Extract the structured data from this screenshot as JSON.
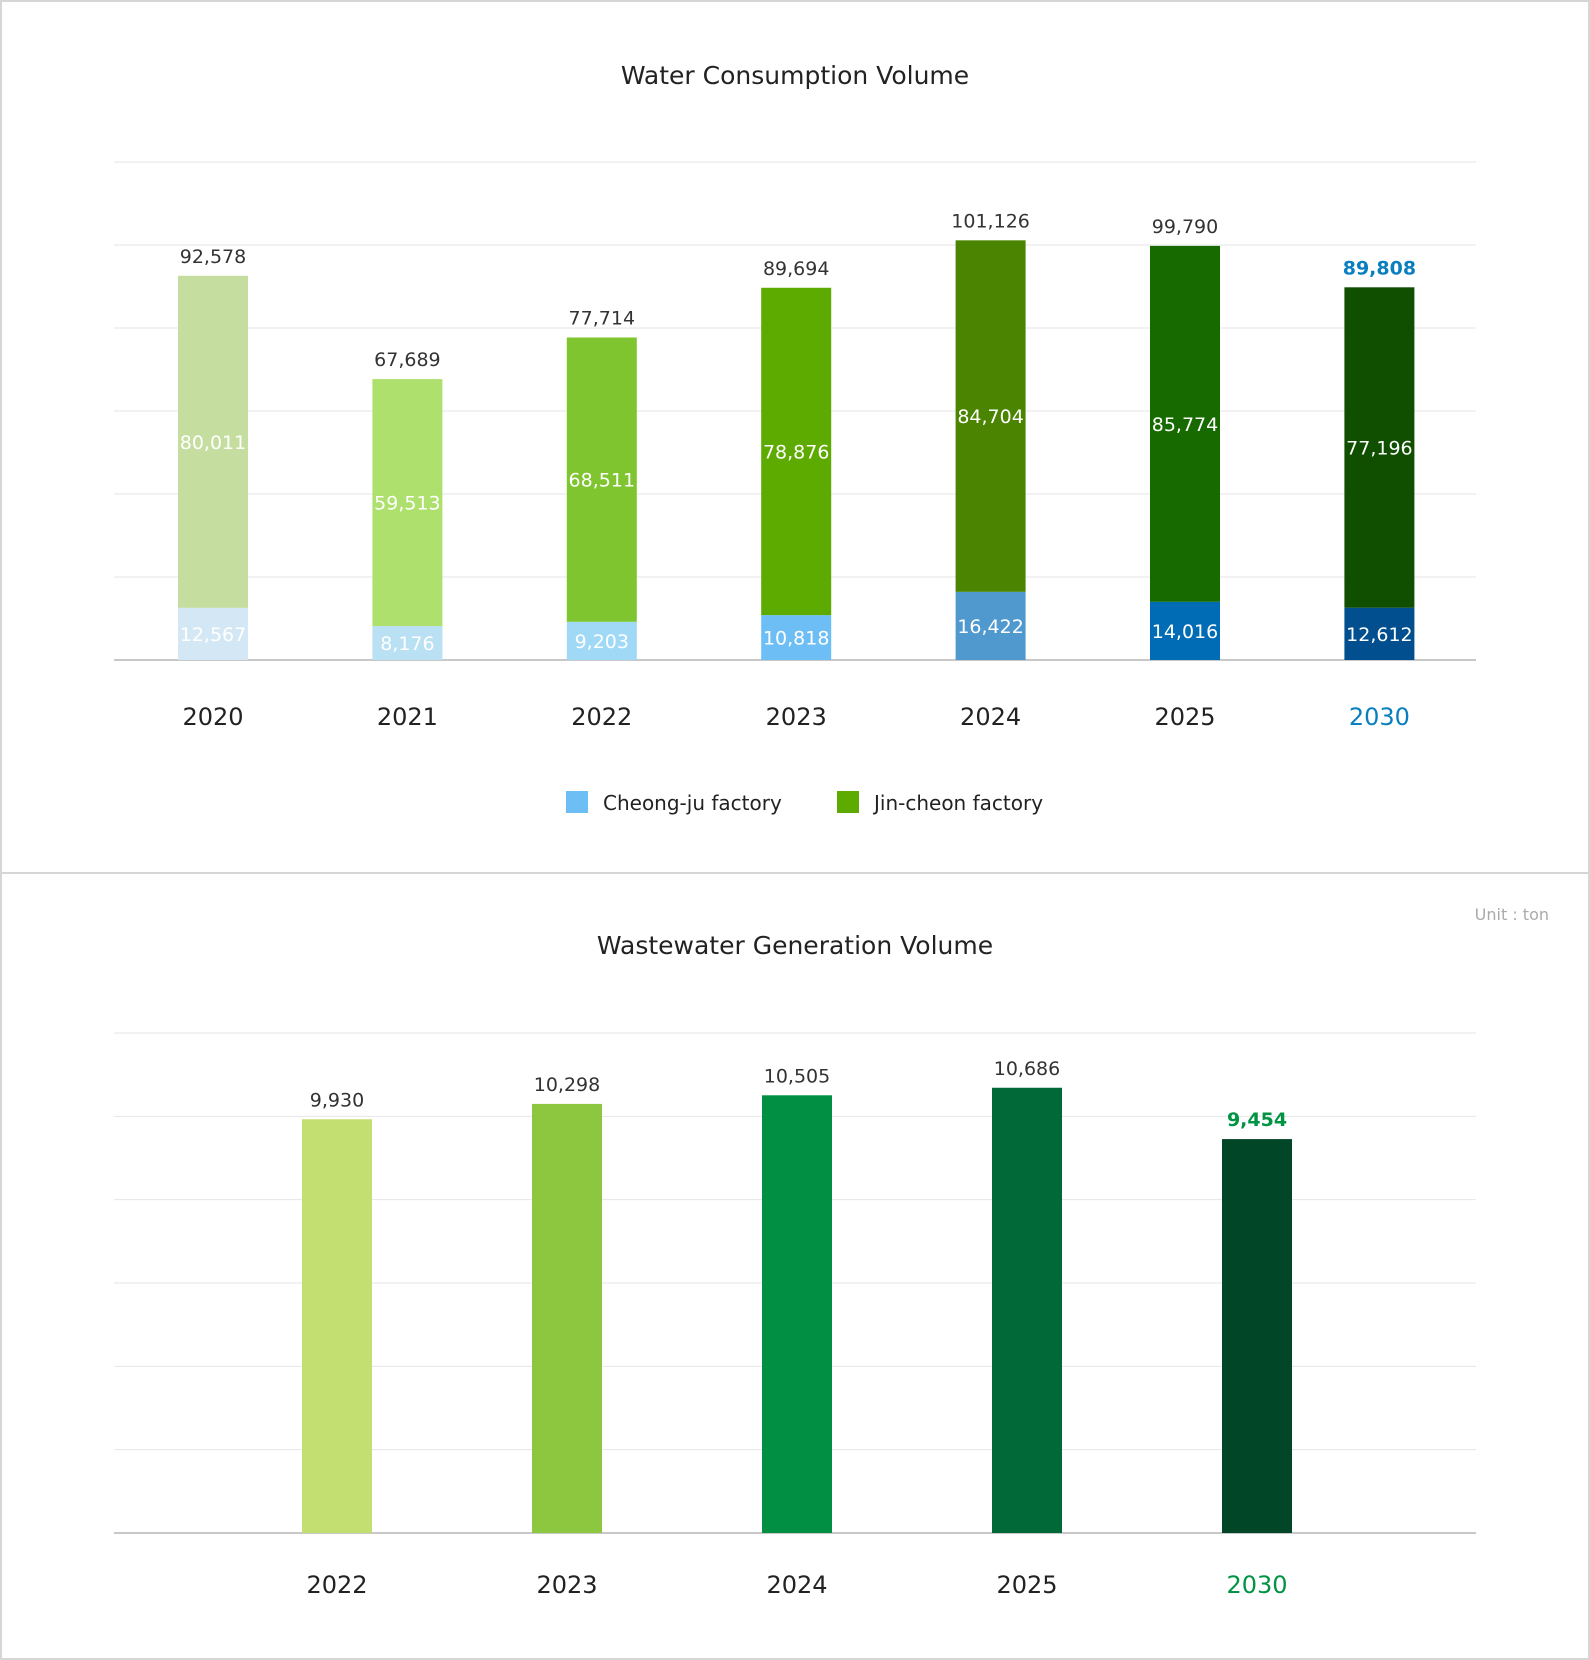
{
  "chart_data": [
    {
      "type": "bar",
      "stacked": true,
      "title": "Water Consumption Volume",
      "categories": [
        "2020",
        "2021",
        "2022",
        "2023",
        "2024",
        "2025",
        "2030"
      ],
      "totals": [
        "92,578",
        "67,689",
        "77,714",
        "89,694",
        "101,126",
        "99,790",
        "89,808"
      ],
      "series": [
        {
          "name": "Cheong-ju factory",
          "values": [
            12567,
            8176,
            9203,
            10818,
            16422,
            14016,
            12612
          ],
          "labels": [
            "12,567",
            "8,176",
            "9,203",
            "10,818",
            "16,422",
            "14,016",
            "12,612"
          ],
          "colors": [
            "#d3e8f4",
            "#b9e0f3",
            "#9fd9f6",
            "#6ebef6",
            "#4f99cf",
            "#016cb6",
            "#014f8e"
          ],
          "legend_color": "#6ebef6"
        },
        {
          "name": "Jin-cheon factory",
          "values": [
            80011,
            59513,
            68511,
            78876,
            84704,
            85774,
            77196
          ],
          "labels": [
            "80,011",
            "59,513",
            "68,511",
            "78,876",
            "84,704",
            "85,774",
            "77,196"
          ],
          "colors": [
            "#c5dd9f",
            "#aee06e",
            "#7fc530",
            "#5dab00",
            "#4a8400",
            "#166a00",
            "#104e00"
          ],
          "legend_color": "#5dab00"
        }
      ],
      "ylim": [
        0,
        120000
      ],
      "grid": true,
      "legend": "bottom-center",
      "highlight": {
        "category": "2030",
        "color": "#0a7fc0"
      }
    },
    {
      "type": "bar",
      "title": "Wastewater Generation Volume",
      "unit_label": "Unit : ton",
      "categories": [
        "2022",
        "2023",
        "2024",
        "2025",
        "2030"
      ],
      "values": [
        9930,
        10298,
        10505,
        10686,
        9454
      ],
      "labels": [
        "9,930",
        "10,298",
        "10,505",
        "10,686",
        "9,454"
      ],
      "colors": [
        "#c3de71",
        "#8dc63f",
        "#018f43",
        "#016937",
        "#014627"
      ],
      "ylim": [
        0,
        12000
      ],
      "grid": true,
      "highlight": {
        "category": "2030",
        "color": "#019344"
      }
    }
  ]
}
